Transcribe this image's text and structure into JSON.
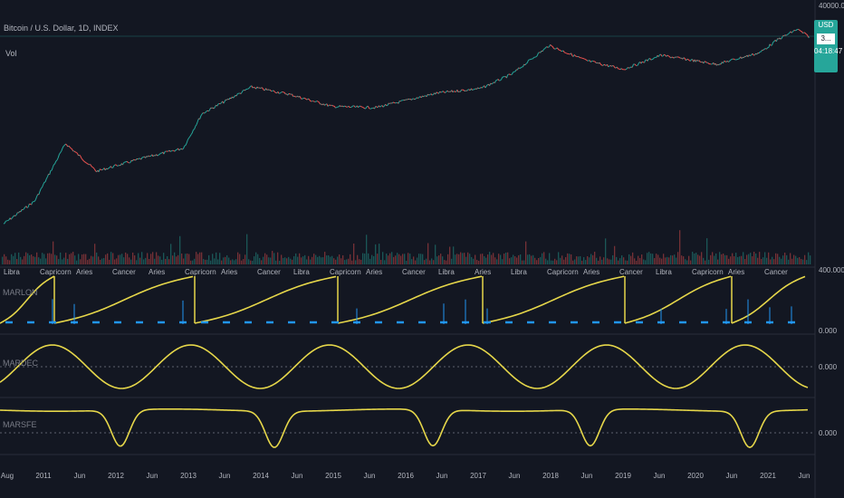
{
  "header": {
    "symbol": "Bitcoin / U.S. Dollar, 1D, INDEX",
    "volume_label": "Vol"
  },
  "price_badge": {
    "currency": "USD",
    "value": "3...",
    "countdown": "04:18:47"
  },
  "panes": {
    "p1": {
      "name": "MARLON",
      "top_tick": "400.000",
      "bottom_tick": "0.000"
    },
    "p2": {
      "name": "MARDEC",
      "tick": "0.000"
    },
    "p3": {
      "name": "MARSFE",
      "tick": "0.000"
    }
  },
  "price_axis": {
    "top_tick": "40000.00"
  },
  "chart_data": [
    {
      "type": "line",
      "title": "Bitcoin / U.S. Dollar, 1D, INDEX",
      "yscale": "log",
      "x": [
        "2010-08",
        "2011-01",
        "2011-06",
        "2011-11",
        "2012-06",
        "2013-01",
        "2013-04",
        "2013-12",
        "2014-06",
        "2015-01",
        "2015-08",
        "2016-06",
        "2017-01",
        "2017-06",
        "2017-12",
        "2018-06",
        "2018-12",
        "2019-06",
        "2020-03",
        "2020-10",
        "2021-01",
        "2021-04",
        "2021-06"
      ],
      "values": [
        0.06,
        0.3,
        18,
        2.5,
        6,
        13,
        150,
        1000,
        600,
        250,
        230,
        650,
        900,
        2500,
        19000,
        6500,
        3500,
        9500,
        5000,
        11500,
        30000,
        60000,
        35000
      ]
    },
    {
      "type": "line",
      "title": "MARLON",
      "description_series": "sawtooth oscillator with ascending ramps reset at Aries markers",
      "zodiac_labels": [
        "Libra",
        "Capricorn",
        "Aries",
        "Cancer",
        "Aries",
        "Capricorn",
        "Aries",
        "Cancer",
        "Libra",
        "Capricorn",
        "Aries",
        "Cancer",
        "Libra",
        "Aries",
        "Libra",
        "Capricorn",
        "Aries",
        "Cancer",
        "Libra",
        "Capricorn",
        "Aries",
        "Cancer"
      ]
    },
    {
      "type": "line",
      "title": "MARDEC"
    },
    {
      "type": "line",
      "title": "MARSFE"
    }
  ],
  "time_axis": [
    "Aug",
    "2011",
    "Jun",
    "2012",
    "Jun",
    "2013",
    "Jun",
    "2014",
    "Jun",
    "2015",
    "Jun",
    "2016",
    "Jun",
    "2017",
    "Jun",
    "2018",
    "Jun",
    "2019",
    "Jun",
    "2020",
    "Jun",
    "2021",
    "Jun"
  ],
  "colors": {
    "background": "#131722",
    "up": "#26a69a",
    "down": "#ef5350",
    "oscillator": "#e6d74a",
    "marker": "#2196f3"
  }
}
